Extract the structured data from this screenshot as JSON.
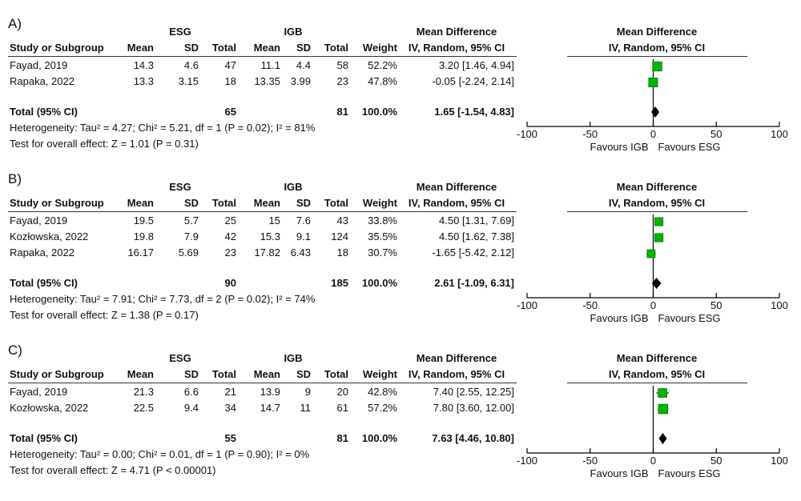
{
  "headers": {
    "group_esg": "ESG",
    "group_igb": "IGB",
    "study": "Study or Subgroup",
    "mean": "Mean",
    "sd": "SD",
    "total": "Total",
    "weight": "Weight",
    "md_title": "Mean Difference",
    "md_method": "IV, Random, 95% CI"
  },
  "axis": {
    "ticks": [
      "-100",
      "-50",
      "0",
      "50",
      "100"
    ],
    "favours_left": "Favours IGB",
    "favours_right": "Favours ESG"
  },
  "colors": {
    "square": "#00b400",
    "diamond": "#000000"
  },
  "chart_data": [
    {
      "type": "forest",
      "label": "A)",
      "xlim": [
        -100,
        100
      ],
      "rows": [
        {
          "study": "Fayad, 2019",
          "esg_mean": "14.3",
          "esg_sd": "4.6",
          "esg_total": "47",
          "igb_mean": "11.1",
          "igb_sd": "4.4",
          "igb_total": "58",
          "weight": "52.2%",
          "ci_text": "3.20 [1.46, 4.94]",
          "md": 3.2,
          "lo": 1.46,
          "hi": 4.94,
          "w": 52.2
        },
        {
          "study": "Rapaka, 2022",
          "esg_mean": "13.3",
          "esg_sd": "3.15",
          "esg_total": "18",
          "igb_mean": "13.35",
          "igb_sd": "3.99",
          "igb_total": "23",
          "weight": "47.8%",
          "ci_text": "-0.05 [-2.24, 2.14]",
          "md": -0.05,
          "lo": -2.24,
          "hi": 2.14,
          "w": 47.8
        }
      ],
      "total": {
        "label": "Total (95% CI)",
        "esg_total": "65",
        "igb_total": "81",
        "weight": "100.0%",
        "ci_text": "1.65 [-1.54, 4.83]",
        "md": 1.65,
        "lo": -1.54,
        "hi": 4.83
      },
      "heterogeneity": "Heterogeneity: Tau² = 4.27; Chi² = 5.21, df = 1 (P = 0.02); I² = 81%",
      "overall": "Test for overall effect: Z = 1.01 (P = 0.31)"
    },
    {
      "type": "forest",
      "label": "B)",
      "xlim": [
        -100,
        100
      ],
      "rows": [
        {
          "study": "Fayad, 2019",
          "esg_mean": "19.5",
          "esg_sd": "5.7",
          "esg_total": "25",
          "igb_mean": "15",
          "igb_sd": "7.6",
          "igb_total": "43",
          "weight": "33.8%",
          "ci_text": "4.50 [1.31, 7.69]",
          "md": 4.5,
          "lo": 1.31,
          "hi": 7.69,
          "w": 33.8
        },
        {
          "study": "Kozłowska, 2022",
          "esg_mean": "19.8",
          "esg_sd": "7.9",
          "esg_total": "42",
          "igb_mean": "15.3",
          "igb_sd": "9.1",
          "igb_total": "124",
          "weight": "35.5%",
          "ci_text": "4.50 [1.62, 7.38]",
          "md": 4.5,
          "lo": 1.62,
          "hi": 7.38,
          "w": 35.5
        },
        {
          "study": "Rapaka, 2022",
          "esg_mean": "16.17",
          "esg_sd": "5.69",
          "esg_total": "23",
          "igb_mean": "17.82",
          "igb_sd": "6.43",
          "igb_total": "18",
          "weight": "30.7%",
          "ci_text": "-1.65 [-5.42, 2.12]",
          "md": -1.65,
          "lo": -5.42,
          "hi": 2.12,
          "w": 30.7
        }
      ],
      "total": {
        "label": "Total (95% CI)",
        "esg_total": "90",
        "igb_total": "185",
        "weight": "100.0%",
        "ci_text": "2.61 [-1.09, 6.31]",
        "md": 2.61,
        "lo": -1.09,
        "hi": 6.31
      },
      "heterogeneity": "Heterogeneity: Tau² = 7.91; Chi² = 7.73, df = 2 (P = 0.02); I² = 74%",
      "overall": "Test for overall effect: Z = 1.38 (P = 0.17)"
    },
    {
      "type": "forest",
      "label": "C)",
      "xlim": [
        -100,
        100
      ],
      "rows": [
        {
          "study": "Fayad, 2019",
          "esg_mean": "21.3",
          "esg_sd": "6.6",
          "esg_total": "21",
          "igb_mean": "13.9",
          "igb_sd": "9",
          "igb_total": "20",
          "weight": "42.8%",
          "ci_text": "7.40 [2.55, 12.25]",
          "md": 7.4,
          "lo": 2.55,
          "hi": 12.25,
          "w": 42.8
        },
        {
          "study": "Kozłowska, 2022",
          "esg_mean": "22.5",
          "esg_sd": "9.4",
          "esg_total": "34",
          "igb_mean": "14.7",
          "igb_sd": "11",
          "igb_total": "61",
          "weight": "57.2%",
          "ci_text": "7.80 [3.60, 12.00]",
          "md": 7.8,
          "lo": 3.6,
          "hi": 12.0,
          "w": 57.2
        }
      ],
      "total": {
        "label": "Total (95% CI)",
        "esg_total": "55",
        "igb_total": "81",
        "weight": "100.0%",
        "ci_text": "7.63 [4.46, 10.80]",
        "md": 7.63,
        "lo": 4.46,
        "hi": 10.8
      },
      "heterogeneity": "Heterogeneity: Tau² = 0.00; Chi² = 0.01, df = 1 (P = 0.90); I² = 0%",
      "overall": "Test for overall effect: Z = 4.71 (P < 0.00001)"
    }
  ]
}
